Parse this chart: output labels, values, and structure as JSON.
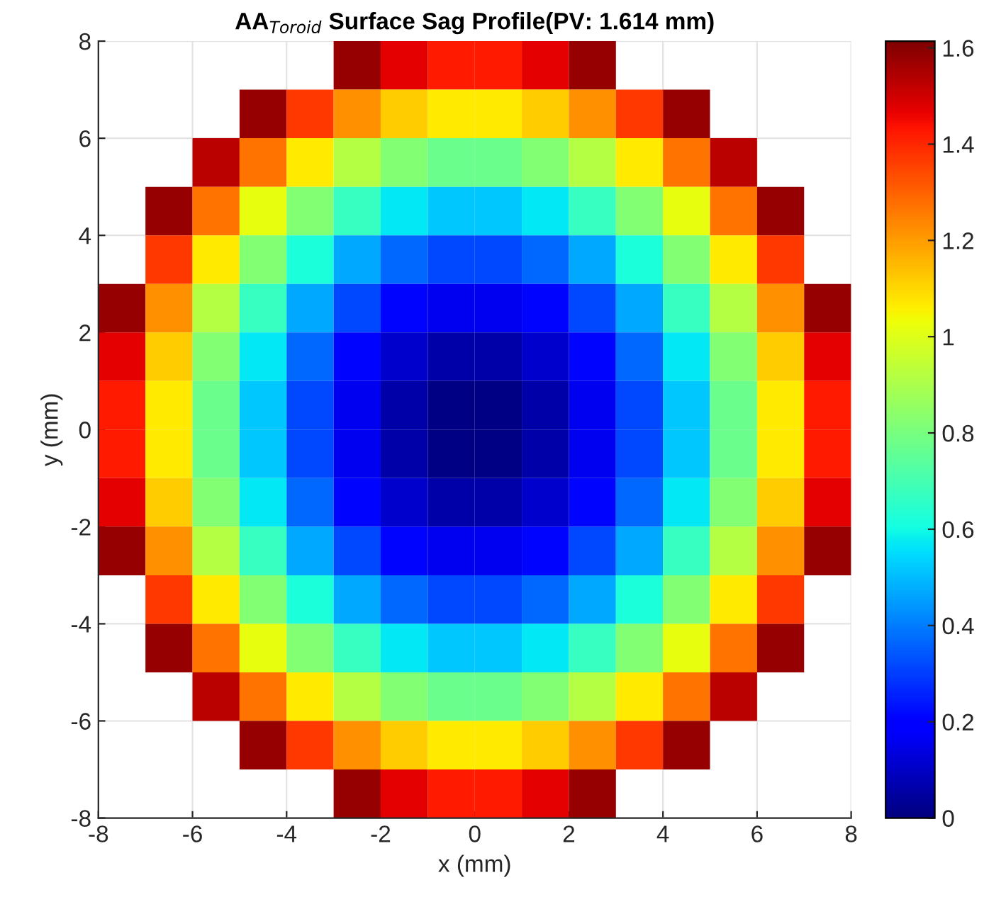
{
  "chart_data": {
    "type": "heatmap",
    "title": "AA$_{Toroid}$ Surface Sag Profile(PV: 1.614 mm)",
    "xlabel": "x (mm)",
    "ylabel": "y (mm)",
    "xlim": [
      -8,
      8
    ],
    "ylim": [
      -8,
      8
    ],
    "xticks": [
      -8,
      -6,
      -4,
      -2,
      0,
      2,
      4,
      6,
      8
    ],
    "yticks": [
      -8,
      -6,
      -4,
      -2,
      0,
      2,
      4,
      6,
      8
    ],
    "clim": [
      0,
      1.614
    ],
    "cticks": [
      0,
      0.2,
      0.4,
      0.6,
      0.8,
      1,
      1.2,
      1.4,
      1.6
    ],
    "grid": true,
    "cells": [
      [
        null,
        null,
        null,
        null,
        null,
        1.58,
        1.47,
        1.42,
        1.42,
        1.47,
        1.58,
        null,
        null,
        null,
        null,
        null
      ],
      [
        null,
        null,
        null,
        1.58,
        1.37,
        1.22,
        1.12,
        1.07,
        1.07,
        1.12,
        1.22,
        1.37,
        1.58,
        null,
        null,
        null
      ],
      [
        null,
        null,
        1.53,
        1.27,
        1.07,
        0.92,
        0.82,
        0.77,
        0.77,
        0.82,
        0.92,
        1.07,
        1.27,
        1.53,
        null,
        null
      ],
      [
        null,
        1.58,
        1.27,
        1.02,
        0.82,
        0.67,
        0.57,
        0.52,
        0.52,
        0.57,
        0.67,
        0.82,
        1.02,
        1.27,
        1.58,
        null
      ],
      [
        null,
        1.37,
        1.07,
        0.82,
        0.62,
        0.47,
        0.37,
        0.32,
        0.32,
        0.37,
        0.47,
        0.62,
        0.82,
        1.07,
        1.37,
        null
      ],
      [
        1.58,
        1.22,
        0.92,
        0.67,
        0.47,
        0.32,
        0.21,
        0.16,
        0.16,
        0.21,
        0.32,
        0.47,
        0.67,
        0.92,
        1.22,
        1.58
      ],
      [
        1.47,
        1.12,
        0.82,
        0.57,
        0.37,
        0.21,
        0.11,
        0.06,
        0.06,
        0.11,
        0.21,
        0.37,
        0.57,
        0.82,
        1.12,
        1.47
      ],
      [
        1.42,
        1.07,
        0.77,
        0.52,
        0.32,
        0.16,
        0.06,
        0.01,
        0.01,
        0.06,
        0.16,
        0.32,
        0.52,
        0.77,
        1.07,
        1.42
      ],
      [
        1.42,
        1.07,
        0.77,
        0.52,
        0.32,
        0.16,
        0.06,
        0.01,
        0.01,
        0.06,
        0.16,
        0.32,
        0.52,
        0.77,
        1.07,
        1.42
      ],
      [
        1.47,
        1.12,
        0.82,
        0.57,
        0.37,
        0.21,
        0.11,
        0.06,
        0.06,
        0.11,
        0.21,
        0.37,
        0.57,
        0.82,
        1.12,
        1.47
      ],
      [
        1.58,
        1.22,
        0.92,
        0.67,
        0.47,
        0.32,
        0.21,
        0.16,
        0.16,
        0.21,
        0.32,
        0.47,
        0.67,
        0.92,
        1.22,
        1.58
      ],
      [
        null,
        1.37,
        1.07,
        0.82,
        0.62,
        0.47,
        0.37,
        0.32,
        0.32,
        0.37,
        0.47,
        0.62,
        0.82,
        1.07,
        1.37,
        null
      ],
      [
        null,
        1.58,
        1.27,
        1.02,
        0.82,
        0.67,
        0.57,
        0.52,
        0.52,
        0.57,
        0.67,
        0.82,
        1.02,
        1.27,
        1.58,
        null
      ],
      [
        null,
        null,
        1.53,
        1.27,
        1.07,
        0.92,
        0.82,
        0.77,
        0.77,
        0.82,
        0.92,
        1.07,
        1.27,
        1.53,
        null,
        null
      ],
      [
        null,
        null,
        null,
        1.58,
        1.37,
        1.22,
        1.12,
        1.07,
        1.07,
        1.12,
        1.22,
        1.37,
        1.58,
        null,
        null,
        null
      ],
      [
        null,
        null,
        null,
        null,
        null,
        1.58,
        1.47,
        1.42,
        1.42,
        1.47,
        1.58,
        null,
        null,
        null,
        null,
        null
      ]
    ]
  }
}
